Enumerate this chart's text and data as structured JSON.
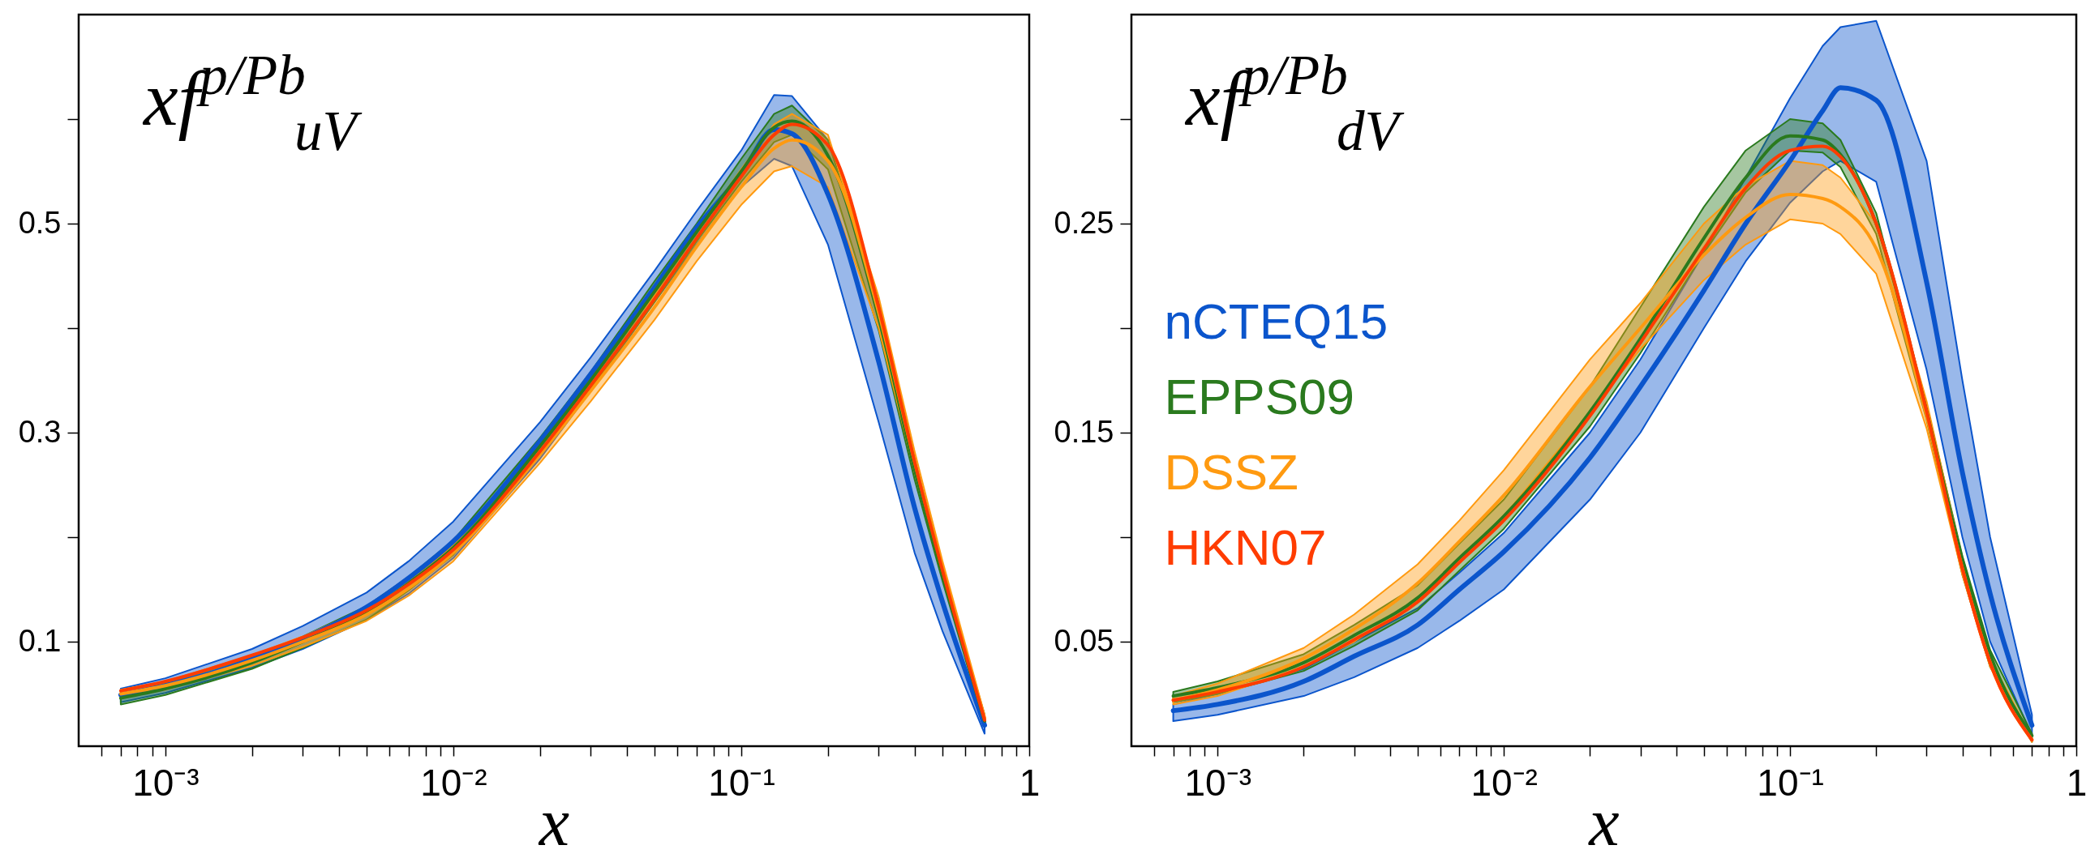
{
  "chart_data": [
    {
      "type": "line",
      "ylabel": "xf$^{p/Pb}$$_{uV}$",
      "xlabel": "x",
      "log": "x",
      "marker": "none",
      "xlim": [
        0.0005,
        1
      ],
      "ylim": [
        0,
        0.7
      ],
      "xticks": [
        {
          "value": 0.0006,
          "label": null
        },
        {
          "value": 0.0007,
          "label": null
        },
        {
          "value": 0.0008,
          "label": null
        },
        {
          "value": 0.0009,
          "label": null
        },
        {
          "value": 0.001,
          "label": "10⁻³"
        },
        {
          "value": 0.002,
          "label": null
        },
        {
          "value": 0.003,
          "label": null
        },
        {
          "value": 0.004,
          "label": null
        },
        {
          "value": 0.005,
          "label": null
        },
        {
          "value": 0.006,
          "label": null
        },
        {
          "value": 0.007,
          "label": null
        },
        {
          "value": 0.008,
          "label": null
        },
        {
          "value": 0.009,
          "label": null
        },
        {
          "value": 0.01,
          "label": "10⁻²"
        },
        {
          "value": 0.02,
          "label": null
        },
        {
          "value": 0.03,
          "label": null
        },
        {
          "value": 0.04,
          "label": null
        },
        {
          "value": 0.05,
          "label": null
        },
        {
          "value": 0.06,
          "label": null
        },
        {
          "value": 0.07,
          "label": null
        },
        {
          "value": 0.08,
          "label": null
        },
        {
          "value": 0.09,
          "label": null
        },
        {
          "value": 0.1,
          "label": "10⁻¹"
        },
        {
          "value": 0.2,
          "label": null
        },
        {
          "value": 0.3,
          "label": null
        },
        {
          "value": 0.4,
          "label": null
        },
        {
          "value": 0.5,
          "label": null
        },
        {
          "value": 0.6,
          "label": null
        },
        {
          "value": 0.7,
          "label": null
        },
        {
          "value": 0.8,
          "label": null
        },
        {
          "value": 0.9,
          "label": null
        },
        1
      ],
      "yticks": [
        0.1,
        {
          "value": 0.2,
          "label": null
        },
        0.3,
        {
          "value": 0.4,
          "label": null
        },
        0.5,
        {
          "value": 0.6,
          "label": null
        }
      ],
      "x": [
        0.0007,
        0.001,
        0.002,
        0.003,
        0.005,
        0.007,
        0.01,
        0.02,
        0.03,
        0.05,
        0.07,
        0.1,
        0.13,
        0.15,
        0.2,
        0.3,
        0.4,
        0.5,
        0.7
      ],
      "series": [
        {
          "color": "#0b55cc",
          "values": [
            0.049,
            0.058,
            0.083,
            0.103,
            0.133,
            0.161,
            0.196,
            0.292,
            0.356,
            0.439,
            0.496,
            0.547,
            0.59,
            0.586,
            0.528,
            0.368,
            0.228,
            0.138,
            0.02
          ],
          "upper": [
            0.055,
            0.065,
            0.093,
            0.115,
            0.147,
            0.177,
            0.215,
            0.31,
            0.372,
            0.455,
            0.512,
            0.57,
            0.623,
            0.622,
            0.58,
            0.42,
            0.27,
            0.165,
            0.03
          ],
          "lower": [
            0.042,
            0.051,
            0.075,
            0.093,
            0.121,
            0.146,
            0.18,
            0.275,
            0.34,
            0.425,
            0.48,
            0.535,
            0.562,
            0.555,
            0.48,
            0.31,
            0.185,
            0.11,
            0.012
          ]
        },
        {
          "color": "#2a7a1e",
          "values": [
            0.046,
            0.055,
            0.08,
            0.1,
            0.128,
            0.156,
            0.19,
            0.287,
            0.35,
            0.435,
            0.492,
            0.55,
            0.592,
            0.598,
            0.565,
            0.41,
            0.265,
            0.165,
            0.024
          ],
          "upper": [
            0.05,
            0.06,
            0.085,
            0.105,
            0.134,
            0.162,
            0.197,
            0.295,
            0.358,
            0.445,
            0.5,
            0.562,
            0.605,
            0.613,
            0.58,
            0.425,
            0.275,
            0.172,
            0.027
          ],
          "lower": [
            0.04,
            0.049,
            0.074,
            0.094,
            0.121,
            0.149,
            0.183,
            0.279,
            0.342,
            0.425,
            0.483,
            0.54,
            0.578,
            0.585,
            0.552,
            0.398,
            0.255,
            0.158,
            0.021
          ]
        },
        {
          "color": "#ff9a10",
          "values": [
            0.05,
            0.058,
            0.082,
            0.1,
            0.126,
            0.151,
            0.185,
            0.279,
            0.34,
            0.42,
            0.478,
            0.535,
            0.572,
            0.58,
            0.56,
            0.415,
            0.272,
            0.17,
            0.027
          ],
          "upper": [
            0.054,
            0.062,
            0.087,
            0.105,
            0.132,
            0.158,
            0.192,
            0.287,
            0.35,
            0.432,
            0.492,
            0.552,
            0.595,
            0.605,
            0.585,
            0.43,
            0.282,
            0.177,
            0.03
          ],
          "lower": [
            0.046,
            0.054,
            0.077,
            0.095,
            0.12,
            0.144,
            0.177,
            0.271,
            0.33,
            0.408,
            0.464,
            0.518,
            0.55,
            0.555,
            0.535,
            0.4,
            0.262,
            0.163,
            0.024
          ]
        },
        {
          "color": "#ff3c00",
          "values": [
            0.053,
            0.062,
            0.087,
            0.104,
            0.13,
            0.155,
            0.188,
            0.282,
            0.345,
            0.428,
            0.486,
            0.545,
            0.585,
            0.595,
            0.575,
            0.42,
            0.272,
            0.168,
            0.025
          ]
        }
      ]
    },
    {
      "type": "line",
      "ylabel": "xf$^{p/Pb}$$_{dV}$",
      "xlabel": "x",
      "log": "x",
      "marker": "none",
      "legend": "left",
      "xlim": [
        0.0005,
        1
      ],
      "ylim": [
        0,
        0.35
      ],
      "xticks": [
        {
          "value": 0.0006,
          "label": null
        },
        {
          "value": 0.0007,
          "label": null
        },
        {
          "value": 0.0008,
          "label": null
        },
        {
          "value": 0.0009,
          "label": null
        },
        {
          "value": 0.001,
          "label": "10⁻³"
        },
        {
          "value": 0.002,
          "label": null
        },
        {
          "value": 0.003,
          "label": null
        },
        {
          "value": 0.004,
          "label": null
        },
        {
          "value": 0.005,
          "label": null
        },
        {
          "value": 0.006,
          "label": null
        },
        {
          "value": 0.007,
          "label": null
        },
        {
          "value": 0.008,
          "label": null
        },
        {
          "value": 0.009,
          "label": null
        },
        {
          "value": 0.01,
          "label": "10⁻²"
        },
        {
          "value": 0.02,
          "label": null
        },
        {
          "value": 0.03,
          "label": null
        },
        {
          "value": 0.04,
          "label": null
        },
        {
          "value": 0.05,
          "label": null
        },
        {
          "value": 0.06,
          "label": null
        },
        {
          "value": 0.07,
          "label": null
        },
        {
          "value": 0.08,
          "label": null
        },
        {
          "value": 0.09,
          "label": null
        },
        {
          "value": 0.1,
          "label": "10⁻¹"
        },
        {
          "value": 0.2,
          "label": null
        },
        {
          "value": 0.3,
          "label": null
        },
        {
          "value": 0.4,
          "label": null
        },
        {
          "value": 0.5,
          "label": null
        },
        {
          "value": 0.6,
          "label": null
        },
        {
          "value": 0.7,
          "label": null
        },
        {
          "value": 0.8,
          "label": null
        },
        {
          "value": 0.9,
          "label": null
        },
        1
      ],
      "yticks": [
        0.05,
        {
          "value": 0.1,
          "label": null
        },
        0.15,
        {
          "value": 0.2,
          "label": null
        },
        0.25,
        {
          "value": 0.3,
          "label": null
        }
      ],
      "x": [
        0.0007,
        0.001,
        0.002,
        0.003,
        0.005,
        0.007,
        0.01,
        0.02,
        0.03,
        0.05,
        0.07,
        0.1,
        0.13,
        0.15,
        0.2,
        0.3,
        0.4,
        0.5,
        0.7
      ],
      "series": [
        {
          "name": "nCTEQ15",
          "color": "#0b55cc",
          "values": [
            0.017,
            0.02,
            0.031,
            0.043,
            0.058,
            0.075,
            0.093,
            0.138,
            0.172,
            0.218,
            0.25,
            0.28,
            0.304,
            0.315,
            0.309,
            0.222,
            0.131,
            0.073,
            0.01
          ],
          "upper": [
            0.02,
            0.025,
            0.037,
            0.05,
            0.066,
            0.083,
            0.102,
            0.15,
            0.185,
            0.236,
            0.272,
            0.31,
            0.335,
            0.344,
            0.347,
            0.28,
            0.175,
            0.1,
            0.015
          ],
          "lower": [
            0.012,
            0.015,
            0.024,
            0.033,
            0.047,
            0.06,
            0.075,
            0.118,
            0.15,
            0.2,
            0.232,
            0.26,
            0.275,
            0.28,
            0.27,
            0.18,
            0.1,
            0.05,
            0.005
          ]
        },
        {
          "name": "EPPS09",
          "color": "#2a7a1e",
          "values": [
            0.024,
            0.028,
            0.04,
            0.053,
            0.071,
            0.09,
            0.11,
            0.16,
            0.195,
            0.243,
            0.272,
            0.292,
            0.29,
            0.283,
            0.25,
            0.16,
            0.089,
            0.044,
            0.005
          ],
          "upper": [
            0.026,
            0.031,
            0.044,
            0.058,
            0.077,
            0.097,
            0.118,
            0.172,
            0.21,
            0.258,
            0.285,
            0.3,
            0.298,
            0.29,
            0.255,
            0.163,
            0.091,
            0.046,
            0.006
          ],
          "lower": [
            0.021,
            0.025,
            0.036,
            0.048,
            0.065,
            0.084,
            0.104,
            0.153,
            0.188,
            0.236,
            0.265,
            0.285,
            0.284,
            0.277,
            0.245,
            0.156,
            0.082,
            0.038,
            0.002
          ]
        },
        {
          "name": "DSSZ",
          "color": "#ff9a10",
          "values": [
            0.022,
            0.027,
            0.042,
            0.056,
            0.078,
            0.098,
            0.12,
            0.172,
            0.2,
            0.235,
            0.253,
            0.264,
            0.262,
            0.258,
            0.238,
            0.158,
            0.085,
            0.04,
            0.003
          ],
          "upper": [
            0.024,
            0.03,
            0.047,
            0.063,
            0.087,
            0.108,
            0.132,
            0.185,
            0.212,
            0.25,
            0.268,
            0.28,
            0.278,
            0.272,
            0.25,
            0.165,
            0.089,
            0.042,
            0.004
          ],
          "lower": [
            0.02,
            0.024,
            0.038,
            0.05,
            0.07,
            0.088,
            0.11,
            0.16,
            0.19,
            0.223,
            0.24,
            0.252,
            0.25,
            0.245,
            0.226,
            0.152,
            0.082,
            0.038,
            0.002
          ]
        },
        {
          "name": "HKN07",
          "color": "#ff3c00",
          "values": [
            0.022,
            0.026,
            0.038,
            0.051,
            0.069,
            0.088,
            0.108,
            0.158,
            0.193,
            0.238,
            0.267,
            0.285,
            0.287,
            0.282,
            0.25,
            0.16,
            0.085,
            0.04,
            0.003
          ]
        }
      ]
    }
  ]
}
